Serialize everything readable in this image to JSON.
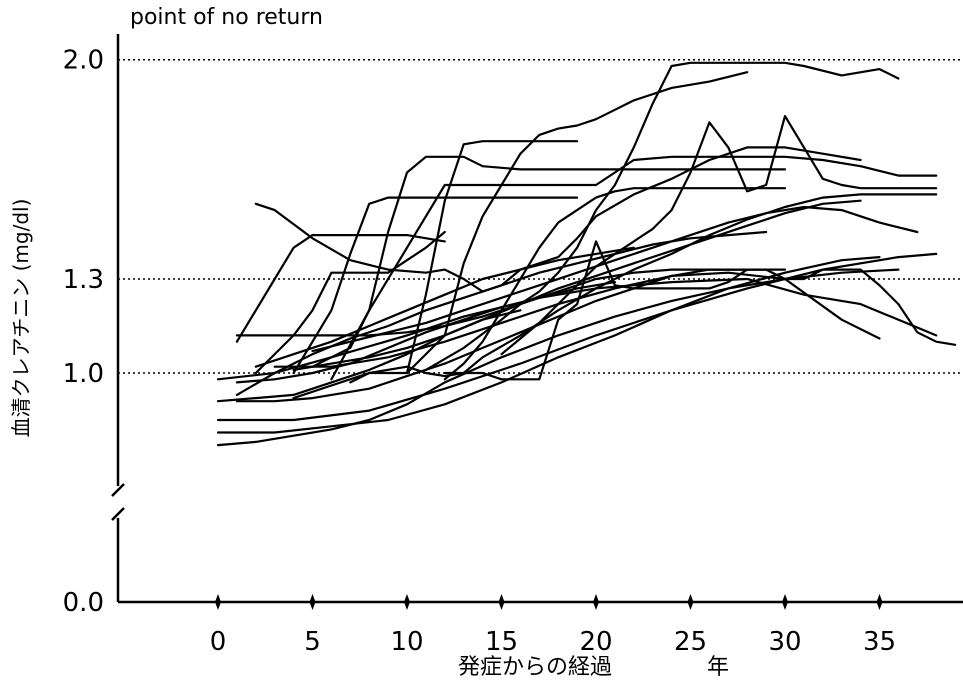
{
  "chart_data": {
    "type": "line",
    "title": "",
    "xlabel": "発症からの経過",
    "xunit": "年",
    "ylabel": "血清クレアチニン (mg/dl)",
    "xlim": [
      -10,
      39
    ],
    "x_ticks": [
      0,
      5,
      10,
      15,
      20,
      25,
      30,
      35
    ],
    "x_tick_labels": [
      "0",
      "5",
      "10",
      "15",
      "20",
      "25",
      "30",
      "35"
    ],
    "y_ticks": [
      0.0,
      1.0,
      1.3,
      2.0
    ],
    "y_tick_labels": [
      "0.0",
      "1.0",
      "1.3",
      "2.0"
    ],
    "y_axis_broken": true,
    "reference_lines": [
      {
        "y": 2.0,
        "style": "dotted",
        "label": "point of no return"
      },
      {
        "y": 1.3,
        "style": "dotted",
        "label": ""
      },
      {
        "y": 1.0,
        "style": "dotted",
        "label": ""
      }
    ],
    "grid": false,
    "legend": "none",
    "line_color": "#000000",
    "series": [
      {
        "x": [
          0,
          2,
          4,
          6,
          8,
          10,
          12,
          15,
          18,
          21,
          24,
          27,
          30,
          33,
          36
        ],
        "y": [
          0.77,
          0.78,
          0.8,
          0.82,
          0.85,
          0.9,
          0.97,
          1.05,
          1.12,
          1.18,
          1.23,
          1.27,
          1.3,
          1.32,
          1.33
        ]
      },
      {
        "x": [
          0,
          3,
          6,
          9,
          12,
          15,
          18,
          21,
          24,
          27,
          30,
          33,
          35
        ],
        "y": [
          0.81,
          0.81,
          0.83,
          0.85,
          0.9,
          0.97,
          1.05,
          1.12,
          1.2,
          1.27,
          1.32,
          1.36,
          1.37
        ]
      },
      {
        "x": [
          0,
          4,
          8,
          12,
          16,
          20,
          24,
          28,
          32,
          36,
          38
        ],
        "y": [
          0.85,
          0.85,
          0.88,
          0.95,
          1.03,
          1.12,
          1.2,
          1.27,
          1.33,
          1.37,
          1.38
        ]
      },
      {
        "x": [
          0,
          2,
          4,
          6,
          8,
          10,
          12,
          14,
          16
        ],
        "y": [
          0.91,
          0.92,
          0.93,
          0.97,
          1.01,
          1.06,
          1.12,
          1.17,
          1.2
        ]
      },
      {
        "x": [
          1,
          3,
          5,
          7,
          9,
          11,
          13,
          15,
          17,
          19,
          21
        ],
        "y": [
          0.97,
          0.98,
          1.0,
          1.03,
          1.08,
          1.13,
          1.17,
          1.21,
          1.24,
          1.27,
          1.29
        ]
      },
      {
        "x": [
          1,
          3,
          5,
          8,
          10,
          12,
          14,
          16,
          18,
          20,
          22,
          24,
          26,
          28,
          30
        ],
        "y": [
          0.91,
          0.91,
          0.92,
          0.95,
          0.99,
          1.03,
          1.08,
          1.13,
          1.18,
          1.23,
          1.27,
          1.31,
          1.33,
          1.33,
          1.33
        ]
      },
      {
        "x": [
          3,
          6,
          9,
          12,
          15,
          18,
          21,
          24,
          27,
          30,
          33,
          35
        ],
        "y": [
          1.02,
          1.02,
          1.05,
          1.1,
          1.16,
          1.22,
          1.27,
          1.31,
          1.32,
          1.3,
          1.17,
          1.11
        ]
      },
      {
        "x": [
          0,
          3,
          6,
          10,
          13,
          17,
          20,
          24,
          28,
          31,
          34,
          38
        ],
        "y": [
          0.98,
          1.0,
          1.05,
          1.12,
          1.18,
          1.24,
          1.27,
          1.29,
          1.3,
          1.25,
          1.22,
          1.12
        ]
      },
      {
        "x": [
          1,
          2,
          4,
          6,
          8,
          10,
          12,
          14,
          16,
          18,
          20,
          22,
          24,
          26,
          28
        ],
        "y": [
          1.12,
          1.12,
          1.12,
          1.12,
          1.12,
          1.13,
          1.15,
          1.18,
          1.22,
          1.26,
          1.3,
          1.32,
          1.33,
          1.33,
          1.33
        ]
      },
      {
        "x": [
          2,
          4,
          6,
          8,
          10,
          12,
          14,
          16,
          18,
          20,
          22
        ],
        "y": [
          1.02,
          1.06,
          1.1,
          1.15,
          1.2,
          1.25,
          1.3,
          1.33,
          1.36,
          1.38,
          1.4
        ]
      },
      {
        "x": [
          1,
          3,
          5,
          7,
          9,
          11,
          13,
          15,
          17,
          19,
          21,
          23,
          25,
          27,
          29
        ],
        "y": [
          0.93,
          1.0,
          1.06,
          1.11,
          1.15,
          1.2,
          1.24,
          1.28,
          1.32,
          1.35,
          1.38,
          1.41,
          1.43,
          1.44,
          1.45
        ]
      },
      {
        "x": [
          4,
          6,
          8,
          10,
          11,
          12,
          13,
          14,
          16,
          18,
          20,
          22,
          24,
          26,
          28,
          30,
          32,
          34,
          36,
          38
        ],
        "y": [
          0.92,
          0.96,
          1.0,
          1.02,
          1.0,
          0.99,
          1.0,
          1.05,
          1.12,
          1.2,
          1.27,
          1.33,
          1.38,
          1.44,
          1.49,
          1.53,
          1.56,
          1.57,
          1.57,
          1.57
        ]
      },
      {
        "x": [
          4,
          6,
          8,
          10,
          12,
          14,
          16,
          18,
          20,
          22,
          24,
          26,
          28,
          30,
          32,
          34
        ],
        "y": [
          1.01,
          1.03,
          1.05,
          1.08,
          1.12,
          1.17,
          1.22,
          1.27,
          1.31,
          1.35,
          1.39,
          1.43,
          1.47,
          1.51,
          1.54,
          1.55
        ]
      },
      {
        "x": [
          5,
          7,
          9,
          11,
          13,
          15,
          17,
          19,
          21,
          23,
          25,
          27,
          29,
          31,
          33,
          35,
          37
        ],
        "y": [
          1.07,
          1.1,
          1.13,
          1.16,
          1.2,
          1.24,
          1.28,
          1.32,
          1.36,
          1.4,
          1.44,
          1.48,
          1.51,
          1.53,
          1.52,
          1.48,
          1.45
        ]
      },
      {
        "x": [
          2,
          3,
          5,
          7,
          9,
          11,
          12,
          13,
          14,
          15,
          16,
          18,
          19,
          20,
          22,
          24,
          26,
          28,
          30,
          32,
          34
        ],
        "y": [
          1.54,
          1.52,
          1.43,
          1.36,
          1.33,
          1.32,
          1.33,
          1.3,
          1.26,
          1.28,
          1.33,
          1.37,
          1.43,
          1.5,
          1.57,
          1.62,
          1.68,
          1.72,
          1.72,
          1.7,
          1.68
        ]
      },
      {
        "x": [
          1,
          3,
          4,
          5,
          6,
          7,
          8,
          10,
          12
        ],
        "y": [
          1.1,
          1.3,
          1.4,
          1.44,
          1.44,
          1.44,
          1.44,
          1.44,
          1.42
        ]
      },
      {
        "x": [
          2,
          4,
          5,
          6,
          7,
          8,
          9,
          10,
          11,
          12
        ],
        "y": [
          1.0,
          1.12,
          1.2,
          1.32,
          1.32,
          1.32,
          1.32,
          1.36,
          1.4,
          1.45
        ]
      },
      {
        "x": [
          4,
          6,
          7,
          8,
          9,
          10,
          11,
          12,
          13,
          14,
          15,
          16,
          17,
          18,
          19
        ],
        "y": [
          1.0,
          1.2,
          1.38,
          1.54,
          1.56,
          1.56,
          1.56,
          1.56,
          1.56,
          1.56,
          1.56,
          1.56,
          1.56,
          1.56,
          1.56
        ]
      },
      {
        "x": [
          5,
          7,
          8,
          9,
          10,
          11,
          12,
          13,
          14,
          16,
          18,
          20,
          22,
          24,
          26,
          28,
          30
        ],
        "y": [
          1.02,
          1.08,
          1.2,
          1.45,
          1.64,
          1.69,
          1.69,
          1.69,
          1.66,
          1.65,
          1.65,
          1.65,
          1.65,
          1.65,
          1.65,
          1.65,
          1.65
        ]
      },
      {
        "x": [
          6,
          8,
          10,
          12,
          14,
          15,
          16,
          17,
          18,
          19,
          20,
          22,
          24,
          26,
          28,
          30,
          32,
          34,
          36,
          38
        ],
        "y": [
          0.98,
          1.2,
          1.4,
          1.6,
          1.6,
          1.6,
          1.6,
          1.6,
          1.6,
          1.6,
          1.6,
          1.68,
          1.69,
          1.69,
          1.69,
          1.69,
          1.68,
          1.66,
          1.63,
          1.63
        ]
      },
      {
        "x": [
          7,
          8,
          9,
          10,
          11,
          12,
          13,
          14,
          15,
          16,
          17,
          18,
          19
        ],
        "y": [
          0.97,
          1.0,
          1.0,
          1.0,
          1.25,
          1.55,
          1.73,
          1.74,
          1.74,
          1.74,
          1.74,
          1.74,
          1.74
        ]
      },
      {
        "x": [
          10,
          12,
          13,
          14,
          16,
          17,
          18,
          19,
          20,
          21,
          22,
          24,
          26,
          28
        ],
        "y": [
          1.0,
          1.12,
          1.35,
          1.5,
          1.7,
          1.76,
          1.78,
          1.79,
          1.81,
          1.84,
          1.87,
          1.91,
          1.93,
          1.96
        ]
      },
      {
        "x": [
          11,
          13,
          15,
          16,
          17,
          18,
          19,
          20,
          21,
          22,
          23,
          24,
          25,
          26,
          27,
          28,
          29,
          30,
          31,
          33,
          35,
          36
        ],
        "y": [
          1.01,
          1.08,
          1.17,
          1.22,
          1.26,
          1.32,
          1.4,
          1.52,
          1.6,
          1.72,
          1.86,
          1.98,
          1.99,
          1.99,
          1.99,
          1.99,
          1.99,
          1.99,
          1.98,
          1.95,
          1.97,
          1.94
        ]
      },
      {
        "x": [
          12,
          13,
          14,
          15,
          16,
          17,
          18,
          19,
          20,
          21,
          22,
          23,
          24,
          25,
          26,
          27,
          28,
          29,
          30
        ],
        "y": [
          0.98,
          1.03,
          1.1,
          1.2,
          1.3,
          1.4,
          1.48,
          1.52,
          1.56,
          1.58,
          1.59,
          1.59,
          1.59,
          1.59,
          1.59,
          1.59,
          1.59,
          1.59,
          1.59
        ]
      },
      {
        "x": [
          12,
          13,
          14,
          15,
          16,
          17,
          18,
          19,
          20,
          21,
          22,
          23,
          24,
          25,
          26,
          27,
          28,
          29,
          30,
          31,
          32,
          33,
          34,
          35,
          36,
          37,
          38,
          39
        ],
        "y": [
          1.0,
          1.0,
          1.0,
          0.98,
          0.98,
          0.98,
          1.17,
          1.22,
          1.42,
          1.28,
          1.27,
          1.27,
          1.27,
          1.27,
          1.27,
          1.29,
          1.33,
          1.33,
          1.3,
          1.3,
          1.33,
          1.33,
          1.33,
          1.28,
          1.22,
          1.13,
          1.1,
          1.09
        ]
      },
      {
        "x": [
          15,
          17,
          18,
          19,
          20,
          21,
          22,
          23,
          24,
          25,
          26,
          27,
          28,
          29,
          30,
          31,
          32,
          33,
          34,
          35,
          36,
          37,
          38
        ],
        "y": [
          1.06,
          1.16,
          1.22,
          1.28,
          1.34,
          1.38,
          1.42,
          1.46,
          1.52,
          1.64,
          1.8,
          1.72,
          1.58,
          1.6,
          1.82,
          1.72,
          1.62,
          1.6,
          1.59,
          1.59,
          1.59,
          1.59,
          1.59
        ]
      }
    ]
  }
}
